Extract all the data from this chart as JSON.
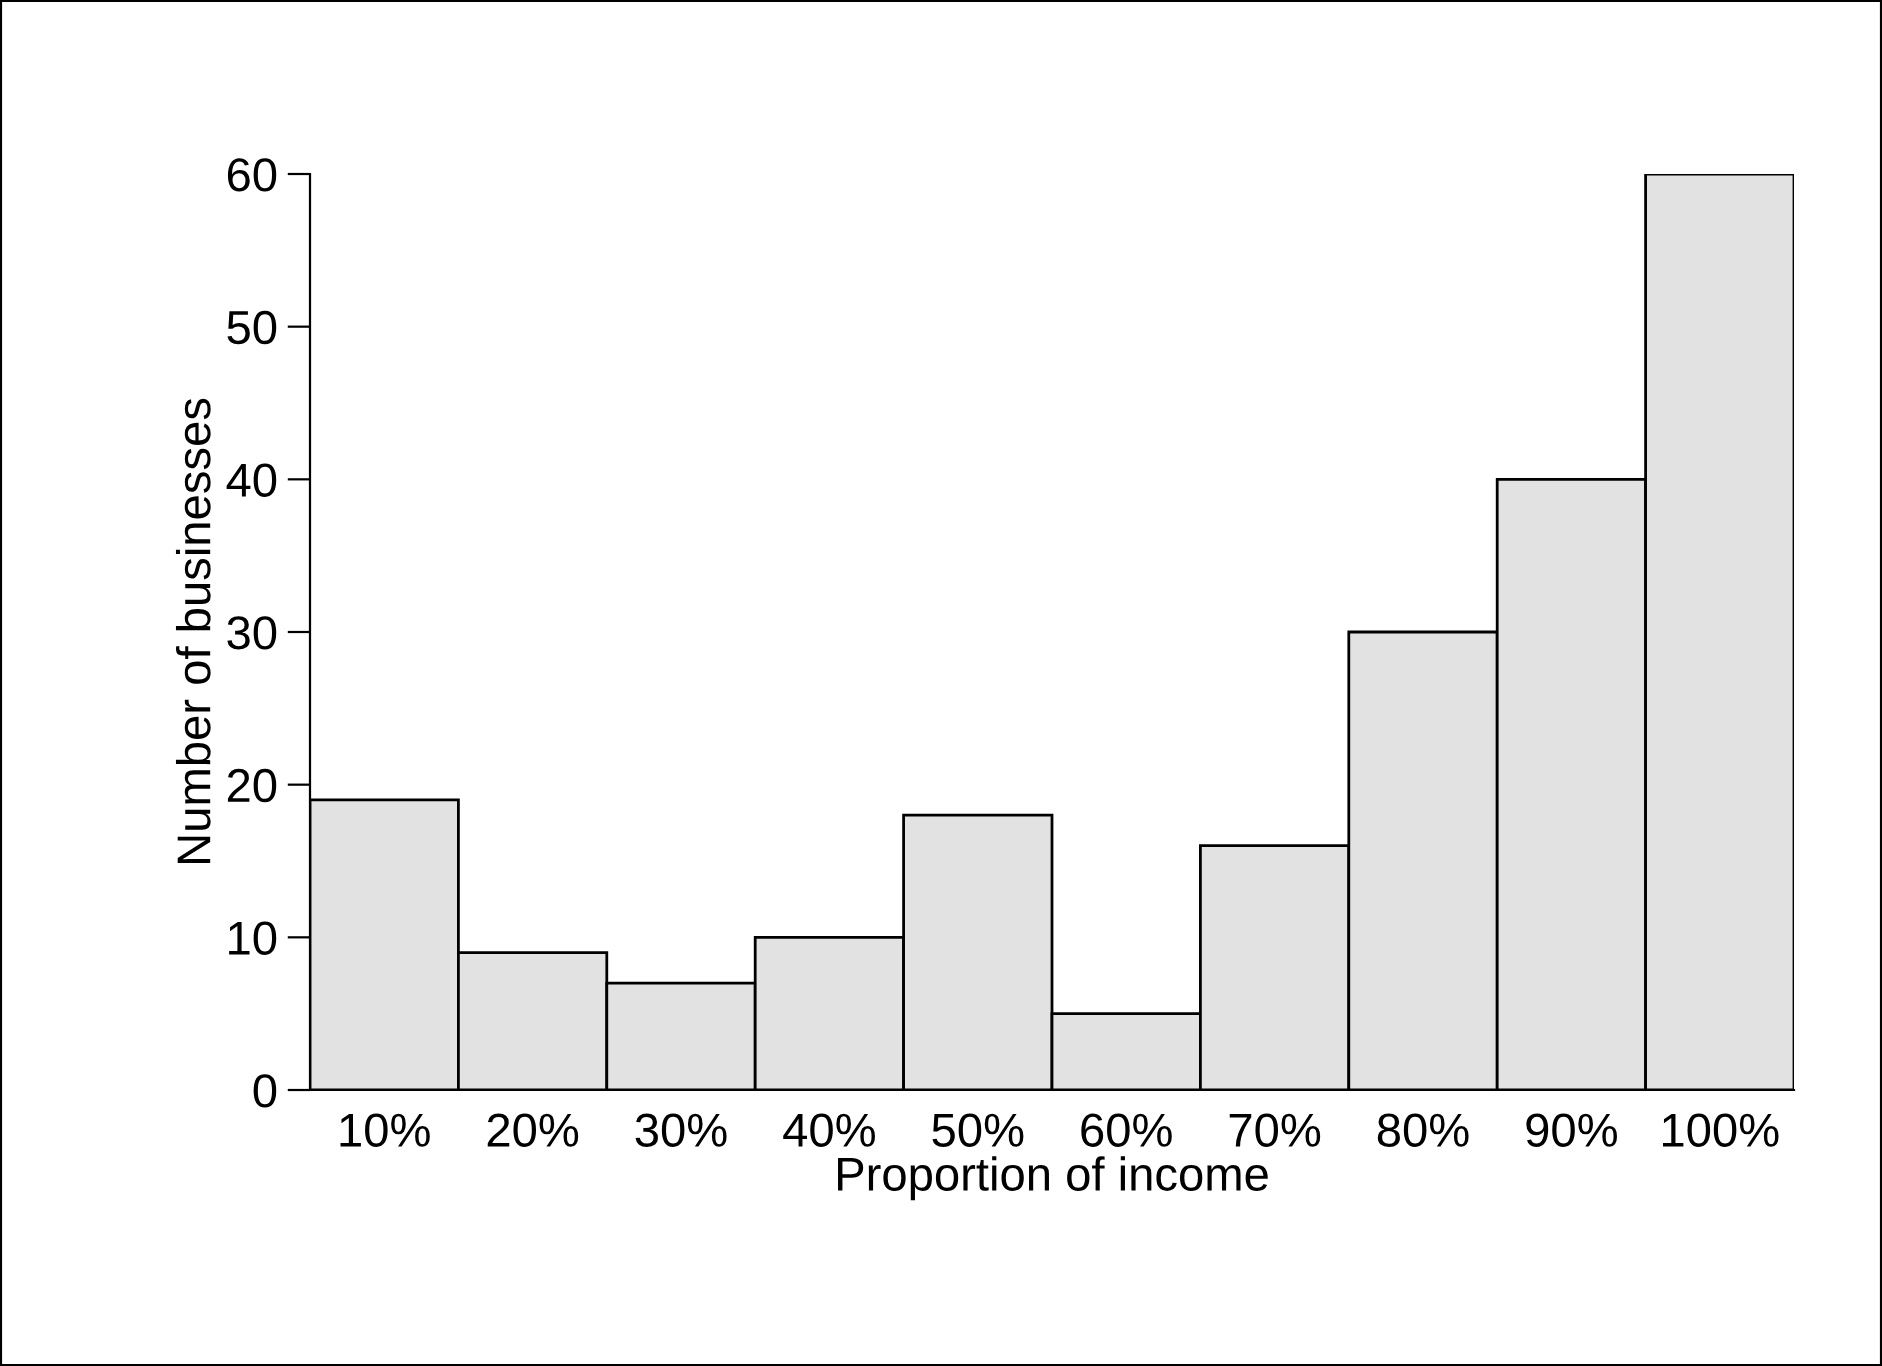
{
  "chart_data": {
    "type": "bar",
    "xlabel": "Proportion of income",
    "ylabel": "Number of businesses",
    "categories": [
      "10%",
      "20%",
      "30%",
      "40%",
      "50%",
      "60%",
      "70%",
      "80%",
      "90%",
      "100%"
    ],
    "values": [
      19,
      9,
      7,
      10,
      18,
      5,
      16,
      30,
      40,
      60
    ],
    "color": "#e2e2e2",
    "ylim": [
      0,
      60
    ],
    "yticks": [
      0,
      10,
      20,
      30,
      40,
      50,
      60
    ],
    "grid": false
  }
}
